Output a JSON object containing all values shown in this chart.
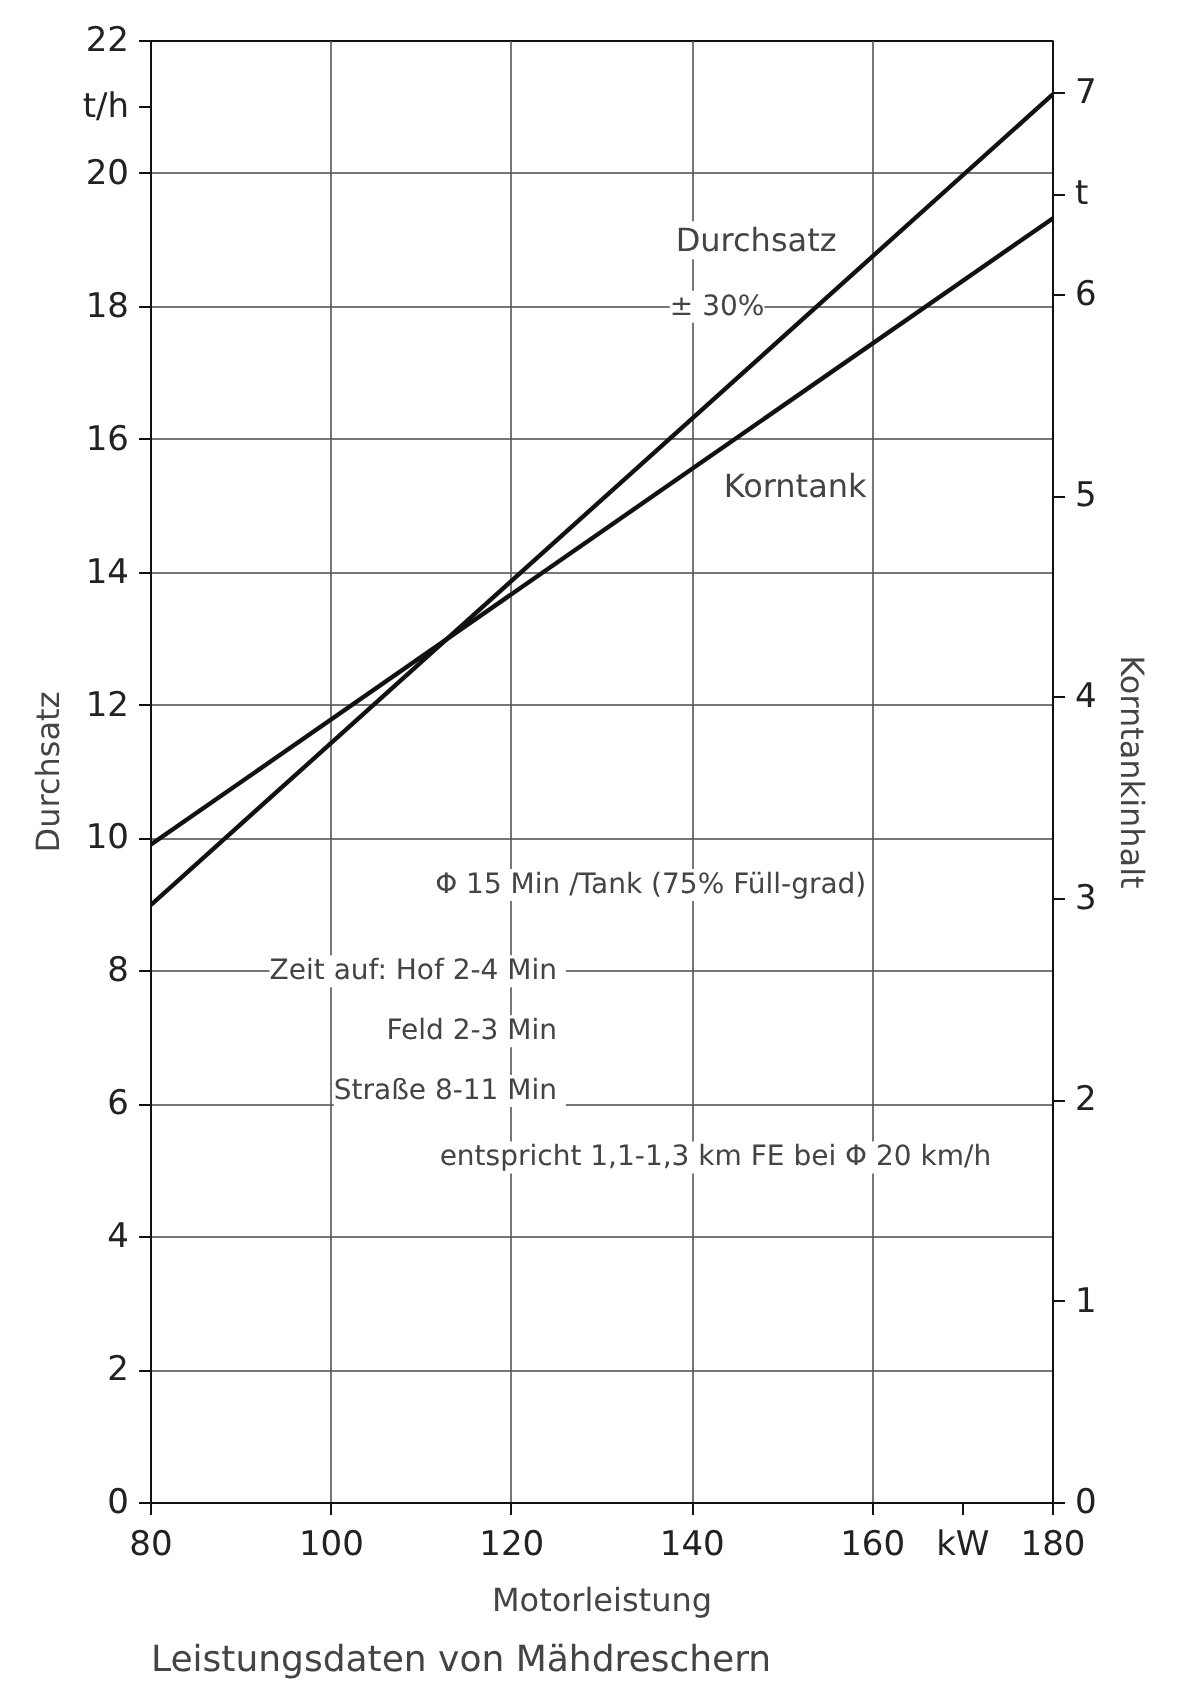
{
  "chart_data": {
    "type": "line",
    "title": "Leistungsdaten von Mähdreschern",
    "xlabel": "Motorleistung",
    "ylabel": "Durchsatz",
    "y2label": "Korntankinhalt",
    "x": [
      80,
      180
    ],
    "series": [
      {
        "name": "Durchsatz",
        "color": "#111111",
        "values": [
          9.0,
          21.2
        ]
      },
      {
        "name": "Korntank",
        "color": "#111111",
        "values": [
          3.27,
          6.38
        ],
        "axis": "y2"
      }
    ],
    "xlim": [
      80,
      180
    ],
    "xticks": [
      80,
      100,
      120,
      140,
      160,
      {
        "value": 170,
        "label": "kW"
      },
      180
    ],
    "ylim": [
      0,
      22
    ],
    "yticks": [
      0,
      2,
      4,
      6,
      8,
      10,
      12,
      14,
      16,
      18,
      20,
      {
        "value": 21,
        "label": "t/h"
      },
      22
    ],
    "y2lim": [
      0,
      7.26
    ],
    "y2ticks": [
      0,
      1,
      2,
      3,
      4,
      5,
      6,
      {
        "value": 6.5,
        "label": "t"
      },
      7
    ],
    "grid": true,
    "marker": "none",
    "line_style": "solid",
    "annotations": [
      "± 30%",
      "Φ 15 Min /Tank (75% Füll-grad)",
      "Zeit auf: Hof  2-4 Min",
      "Feld  2-3 Min",
      "Straße  8-11 Min",
      "entspricht 1,1-1,3 km FE bei Φ 20 km/h"
    ]
  }
}
